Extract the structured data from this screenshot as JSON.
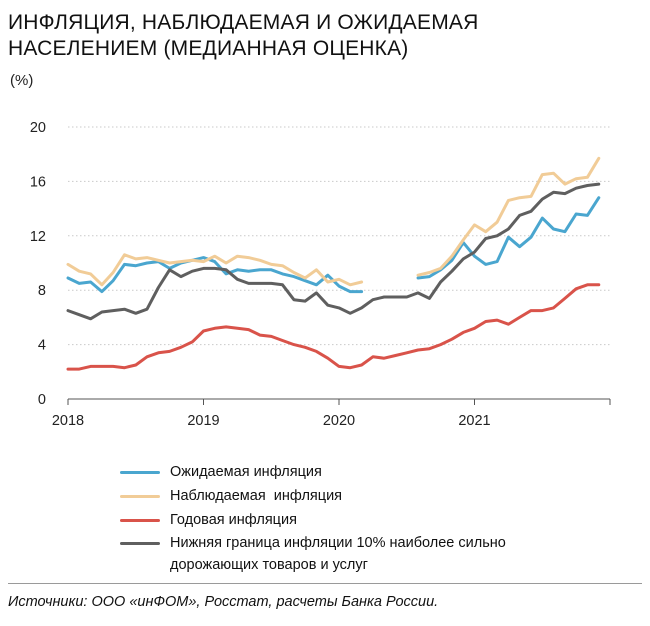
{
  "title_lines": [
    "ИНФЛЯЦИЯ, НАБЛЮДАЕМАЯ И ОЖИДАЕМАЯ",
    "НАСЕЛЕНИЕМ (МЕДИАННАЯ ОЦЕНКА)"
  ],
  "unit": "(%)",
  "source": "Источники: ООО «инФОМ», Росстат, расчеты Банка России.",
  "chart_data": {
    "type": "line",
    "title": "ИНФЛЯЦИЯ, НАБЛЮДАЕМАЯ И ОЖИДАЕМАЯ НАСЕЛЕНИЕМ (МЕДИАННАЯ ОЦЕНКА)",
    "ylabel": "(%)",
    "xlim": [
      2018.0,
      2022.0
    ],
    "ylim": [
      0,
      20
    ],
    "yticks": [
      0,
      4,
      8,
      12,
      16,
      20
    ],
    "xticks": [
      {
        "value": 2018.0,
        "label": "2018"
      },
      {
        "value": 2019.0,
        "label": "2019"
      },
      {
        "value": 2020.0,
        "label": "2020"
      },
      {
        "value": 2021.0,
        "label": "2021"
      }
    ],
    "grid": true,
    "legend": "bottom",
    "series": [
      {
        "name": "Ожидаемая инфляция",
        "color": "#4aa6cf",
        "x": [
          2018.0,
          2018.083,
          2018.167,
          2018.25,
          2018.333,
          2018.417,
          2018.5,
          2018.583,
          2018.667,
          2018.75,
          2018.833,
          2018.917,
          2019.0,
          2019.083,
          2019.167,
          2019.25,
          2019.333,
          2019.417,
          2019.5,
          2019.583,
          2019.667,
          2019.75,
          2019.833,
          2019.917,
          2020.0,
          2020.083,
          2020.167,
          null,
          2020.583,
          2020.667,
          2020.75,
          2020.833,
          2020.917,
          2021.0,
          2021.083,
          2021.167,
          2021.25,
          2021.333,
          2021.417,
          2021.5,
          2021.583,
          2021.667,
          2021.75,
          2021.833,
          2021.917
        ],
        "y": [
          8.9,
          8.5,
          8.6,
          7.9,
          8.7,
          9.9,
          9.8,
          10.0,
          10.1,
          9.6,
          10.0,
          10.2,
          10.4,
          10.1,
          9.2,
          9.5,
          9.4,
          9.5,
          9.5,
          9.2,
          9.0,
          8.7,
          8.4,
          9.1,
          8.3,
          7.9,
          7.9,
          null,
          8.9,
          9.0,
          9.5,
          10.2,
          11.5,
          10.5,
          9.9,
          10.1,
          11.9,
          11.2,
          11.9,
          13.3,
          12.5,
          12.3,
          13.6,
          13.5,
          14.8
        ]
      },
      {
        "name": "Наблюдаемая  инфляция",
        "color": "#f1cc97",
        "x": [
          2018.0,
          2018.083,
          2018.167,
          2018.25,
          2018.333,
          2018.417,
          2018.5,
          2018.583,
          2018.667,
          2018.75,
          2018.833,
          2018.917,
          2019.0,
          2019.083,
          2019.167,
          2019.25,
          2019.333,
          2019.417,
          2019.5,
          2019.583,
          2019.667,
          2019.75,
          2019.833,
          2019.917,
          2020.0,
          2020.083,
          2020.167,
          null,
          2020.583,
          2020.667,
          2020.75,
          2020.833,
          2020.917,
          2021.0,
          2021.083,
          2021.167,
          2021.25,
          2021.333,
          2021.417,
          2021.5,
          2021.583,
          2021.667,
          2021.75,
          2021.833,
          2021.917
        ],
        "y": [
          9.9,
          9.4,
          9.2,
          8.4,
          9.3,
          10.6,
          10.3,
          10.4,
          10.2,
          10.0,
          10.1,
          10.2,
          10.1,
          10.5,
          10.0,
          10.5,
          10.4,
          10.2,
          9.9,
          9.8,
          9.3,
          8.9,
          9.5,
          8.6,
          8.8,
          8.4,
          8.6,
          null,
          9.1,
          9.3,
          9.6,
          10.5,
          11.7,
          12.8,
          12.3,
          13.0,
          14.6,
          14.8,
          14.9,
          16.5,
          16.6,
          15.8,
          16.2,
          16.3,
          17.7
        ]
      },
      {
        "name": "Годовая инфляция",
        "color": "#d9534a",
        "x": [
          2018.0,
          2018.083,
          2018.167,
          2018.25,
          2018.333,
          2018.417,
          2018.5,
          2018.583,
          2018.667,
          2018.75,
          2018.833,
          2018.917,
          2019.0,
          2019.083,
          2019.167,
          2019.25,
          2019.333,
          2019.417,
          2019.5,
          2019.583,
          2019.667,
          2019.75,
          2019.833,
          2019.917,
          2020.0,
          2020.083,
          2020.167,
          2020.25,
          2020.333,
          2020.417,
          2020.5,
          2020.583,
          2020.667,
          2020.75,
          2020.833,
          2020.917,
          2021.0,
          2021.083,
          2021.167,
          2021.25,
          2021.333,
          2021.417,
          2021.5,
          2021.583,
          2021.667,
          2021.75,
          2021.833,
          2021.917
        ],
        "y": [
          2.2,
          2.2,
          2.4,
          2.4,
          2.4,
          2.3,
          2.5,
          3.1,
          3.4,
          3.5,
          3.8,
          4.2,
          5.0,
          5.2,
          5.3,
          5.2,
          5.1,
          4.7,
          4.6,
          4.3,
          4.0,
          3.8,
          3.5,
          3.0,
          2.4,
          2.3,
          2.5,
          3.1,
          3.0,
          3.2,
          3.4,
          3.6,
          3.7,
          4.0,
          4.4,
          4.9,
          5.2,
          5.7,
          5.8,
          5.5,
          6.0,
          6.5,
          6.5,
          6.7,
          7.4,
          8.1,
          8.4,
          8.4
        ]
      },
      {
        "name": "Нижняя граница инфляции 10% наиболее сильно дорожающих товаров и услуг",
        "legend_lines": [
          "Нижняя граница инфляции 10% наиболее сильно",
          "дорожающих товаров и услуг"
        ],
        "color": "#5f5f5f",
        "x": [
          2018.0,
          2018.083,
          2018.167,
          2018.25,
          2018.333,
          2018.417,
          2018.5,
          2018.583,
          2018.667,
          2018.75,
          2018.833,
          2018.917,
          2019.0,
          2019.083,
          2019.167,
          2019.25,
          2019.333,
          2019.417,
          2019.5,
          2019.583,
          2019.667,
          2019.75,
          2019.833,
          2019.917,
          2020.0,
          2020.083,
          2020.167,
          2020.25,
          2020.333,
          2020.417,
          2020.5,
          2020.583,
          2020.667,
          2020.75,
          2020.833,
          2020.917,
          2021.0,
          2021.083,
          2021.167,
          2021.25,
          2021.333,
          2021.417,
          2021.5,
          2021.583,
          2021.667,
          2021.75,
          2021.833,
          2021.917
        ],
        "y": [
          6.5,
          6.2,
          5.9,
          6.4,
          6.5,
          6.6,
          6.3,
          6.6,
          8.2,
          9.5,
          9.0,
          9.4,
          9.6,
          9.6,
          9.5,
          8.8,
          8.5,
          8.5,
          8.5,
          8.4,
          7.3,
          7.2,
          7.8,
          6.9,
          6.7,
          6.3,
          6.7,
          7.3,
          7.5,
          7.5,
          7.5,
          7.8,
          7.4,
          8.6,
          9.4,
          10.3,
          10.8,
          11.8,
          12.0,
          12.5,
          13.5,
          13.8,
          14.7,
          15.2,
          15.1,
          15.5,
          15.7,
          15.8
        ]
      }
    ]
  }
}
